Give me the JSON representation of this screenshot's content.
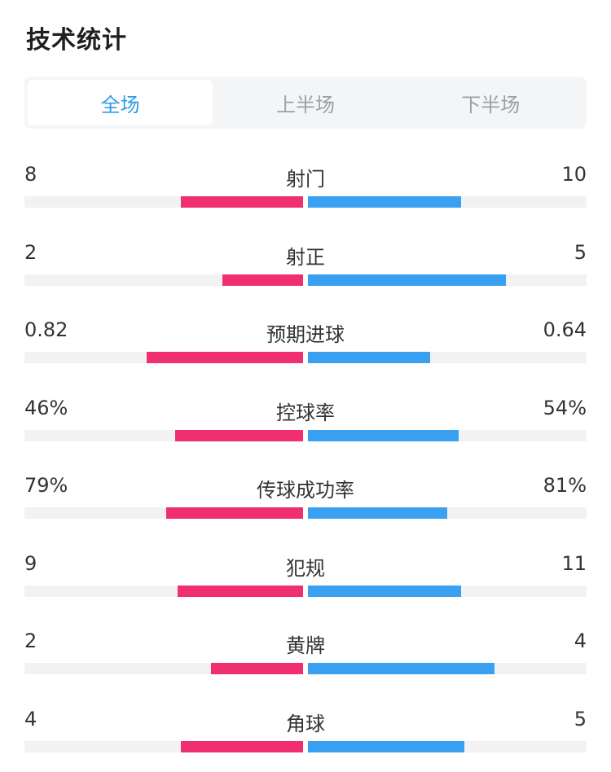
{
  "title": "技术统计",
  "tabs": [
    {
      "label": "全场",
      "active": true
    },
    {
      "label": "上半场",
      "active": false
    },
    {
      "label": "下半场",
      "active": false
    }
  ],
  "colors": {
    "home": "#f0306e",
    "away": "#3aa1f2",
    "active_tab": "#2f9be8"
  },
  "stats": [
    {
      "label": "射门",
      "home": "8",
      "away": "10",
      "home_fill": 0.44,
      "away_fill": 0.55
    },
    {
      "label": "射正",
      "home": "2",
      "away": "5",
      "home_fill": 0.29,
      "away_fill": 0.71
    },
    {
      "label": "预期进球",
      "home": "0.82",
      "away": "0.64",
      "home_fill": 0.56,
      "away_fill": 0.44
    },
    {
      "label": "控球率",
      "home": "46%",
      "away": "54%",
      "home_fill": 0.46,
      "away_fill": 0.54
    },
    {
      "label": "传球成功率",
      "home": "79%",
      "away": "81%",
      "home_fill": 0.49,
      "away_fill": 0.5
    },
    {
      "label": "犯规",
      "home": "9",
      "away": "11",
      "home_fill": 0.45,
      "away_fill": 0.55
    },
    {
      "label": "黄牌",
      "home": "2",
      "away": "4",
      "home_fill": 0.33,
      "away_fill": 0.67
    },
    {
      "label": "角球",
      "home": "4",
      "away": "5",
      "home_fill": 0.44,
      "away_fill": 0.56
    }
  ]
}
